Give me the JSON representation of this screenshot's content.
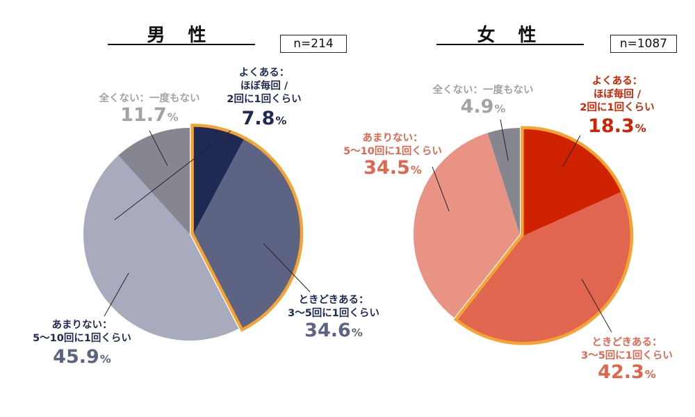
{
  "chart_data": [
    {
      "type": "pie",
      "title": "男 性",
      "n_label": "n=214",
      "colors": [
        "#1f2a54",
        "#5d6383",
        "#a7abbd",
        "#868690"
      ],
      "slices": [
        {
          "label_lines": [
            "よくある：",
            "ほぼ毎回 /",
            "2回に1回くらい"
          ],
          "value": 7.8,
          "value_text": "7.8"
        },
        {
          "label_lines": [
            "ときどきある：",
            "3〜5回に1回くらい"
          ],
          "value": 34.6,
          "value_text": "34.6"
        },
        {
          "label_lines": [
            "あまりない：",
            "5〜10回に1回くらい"
          ],
          "value": 45.9,
          "value_text": "45.9"
        },
        {
          "label_lines": [
            "全くない：一度もない"
          ],
          "value": 11.7,
          "value_text": "11.7"
        }
      ],
      "highlight": [
        0,
        1
      ],
      "highlight_color": "#f5a333",
      "label_color_dark": "#1f2a54",
      "label_color_mid": "#5d6383",
      "label_color_light": "#a3a3a3"
    },
    {
      "type": "pie",
      "title": "女 性",
      "n_label": "n=1087",
      "colors": [
        "#cf2200",
        "#e0664f",
        "#e89383",
        "#868690"
      ],
      "slices": [
        {
          "label_lines": [
            "よくある：",
            "ほぼ毎回 /",
            "2回に1回くらい"
          ],
          "value": 18.3,
          "value_text": "18.3"
        },
        {
          "label_lines": [
            "ときどきある：",
            "3〜5回に1回くらい"
          ],
          "value": 42.3,
          "value_text": "42.3"
        },
        {
          "label_lines": [
            "あまりない：",
            "5〜10回に1回くらい"
          ],
          "value": 34.5,
          "value_text": "34.5"
        },
        {
          "label_lines": [
            "全くない：一度もない"
          ],
          "value": 4.9,
          "value_text": "4.9"
        }
      ],
      "highlight": [
        0,
        1
      ],
      "highlight_color": "#f5a333",
      "label_color_dark": "#cf2200",
      "label_color_mid": "#e0664f",
      "label_color_light": "#a3a3a3"
    }
  ],
  "percent_sign": "%"
}
